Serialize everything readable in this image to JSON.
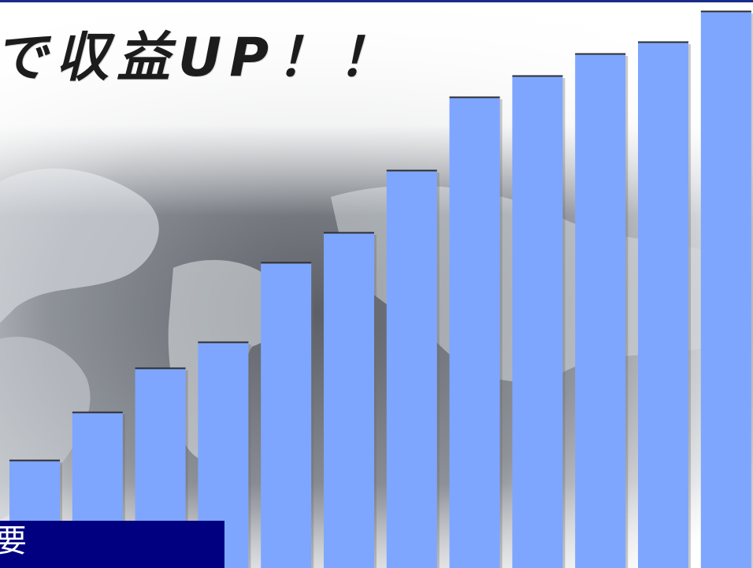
{
  "headline": {
    "text": "で収益UP！！"
  },
  "label": {
    "text": "要"
  },
  "colors": {
    "bar_fill": "#7ea6ff",
    "bar_edge": "#2d2d2d",
    "label_bg": "#000080",
    "label_text": "#ffffff",
    "top_rule": "#1a2a8a"
  },
  "chart_data": {
    "type": "bar",
    "values": [
      137,
      198,
      254,
      287,
      388,
      426,
      505,
      598,
      625,
      653,
      668,
      707
    ],
    "ylim": [
      0,
      721
    ],
    "grid": false,
    "legend": "none"
  }
}
